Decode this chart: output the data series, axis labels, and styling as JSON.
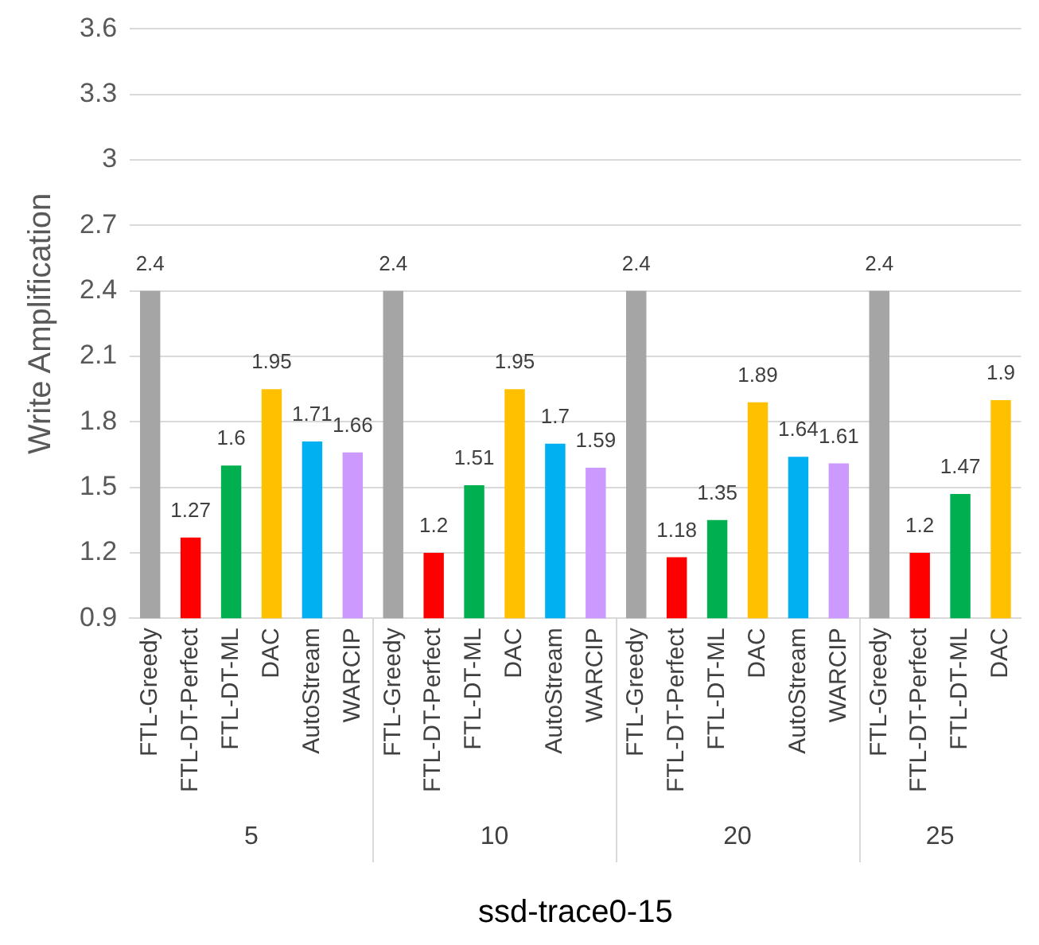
{
  "chart_data": {
    "type": "bar",
    "xlabel": "ssd-trace0-15",
    "ylabel": "Write Amplification",
    "categories": [
      "FTL-Greedy",
      "FTL-DT-Perfect",
      "FTL-DT-ML",
      "DAC",
      "AutoStream",
      "WARCIP",
      "FTL-Greedy",
      "FTL-DT-Perfect",
      "FTL-DT-ML",
      "DAC",
      "AutoStream",
      "WARCIP",
      "FTL-Greedy",
      "FTL-DT-Perfect",
      "FTL-DT-ML",
      "DAC",
      "AutoStream",
      "WARCIP",
      "FTL-Greedy",
      "FTL-DT-Perfect",
      "FTL-DT-ML",
      "DAC"
    ],
    "series": [
      {
        "colors": [
          "#a5a5a5",
          "#ff0000",
          "#00b050",
          "#ffc000",
          "#00b0f0",
          "#cc99ff",
          "#a5a5a5",
          "#ff0000",
          "#00b050",
          "#ffc000",
          "#00b0f0",
          "#cc99ff",
          "#a5a5a5",
          "#ff0000",
          "#00b050",
          "#ffc000",
          "#00b0f0",
          "#cc99ff",
          "#a5a5a5",
          "#ff0000",
          "#00b050",
          "#ffc000"
        ],
        "values": [
          2.4,
          1.27,
          1.6,
          1.95,
          1.71,
          1.66,
          2.4,
          1.2,
          1.51,
          1.95,
          1.7,
          1.59,
          2.4,
          1.18,
          1.35,
          1.89,
          1.64,
          1.61,
          2.4,
          1.2,
          1.47,
          1.9
        ]
      }
    ],
    "ylim": [
      0.9,
      3.6
    ],
    "yticks": [
      0.9,
      1.2,
      1.5,
      1.8,
      2.1,
      2.4,
      2.7,
      3,
      3.3,
      3.6
    ],
    "grid": "y",
    "data_labels": true,
    "legend": false,
    "annotations": [
      "5",
      "10",
      "20",
      "25"
    ]
  }
}
